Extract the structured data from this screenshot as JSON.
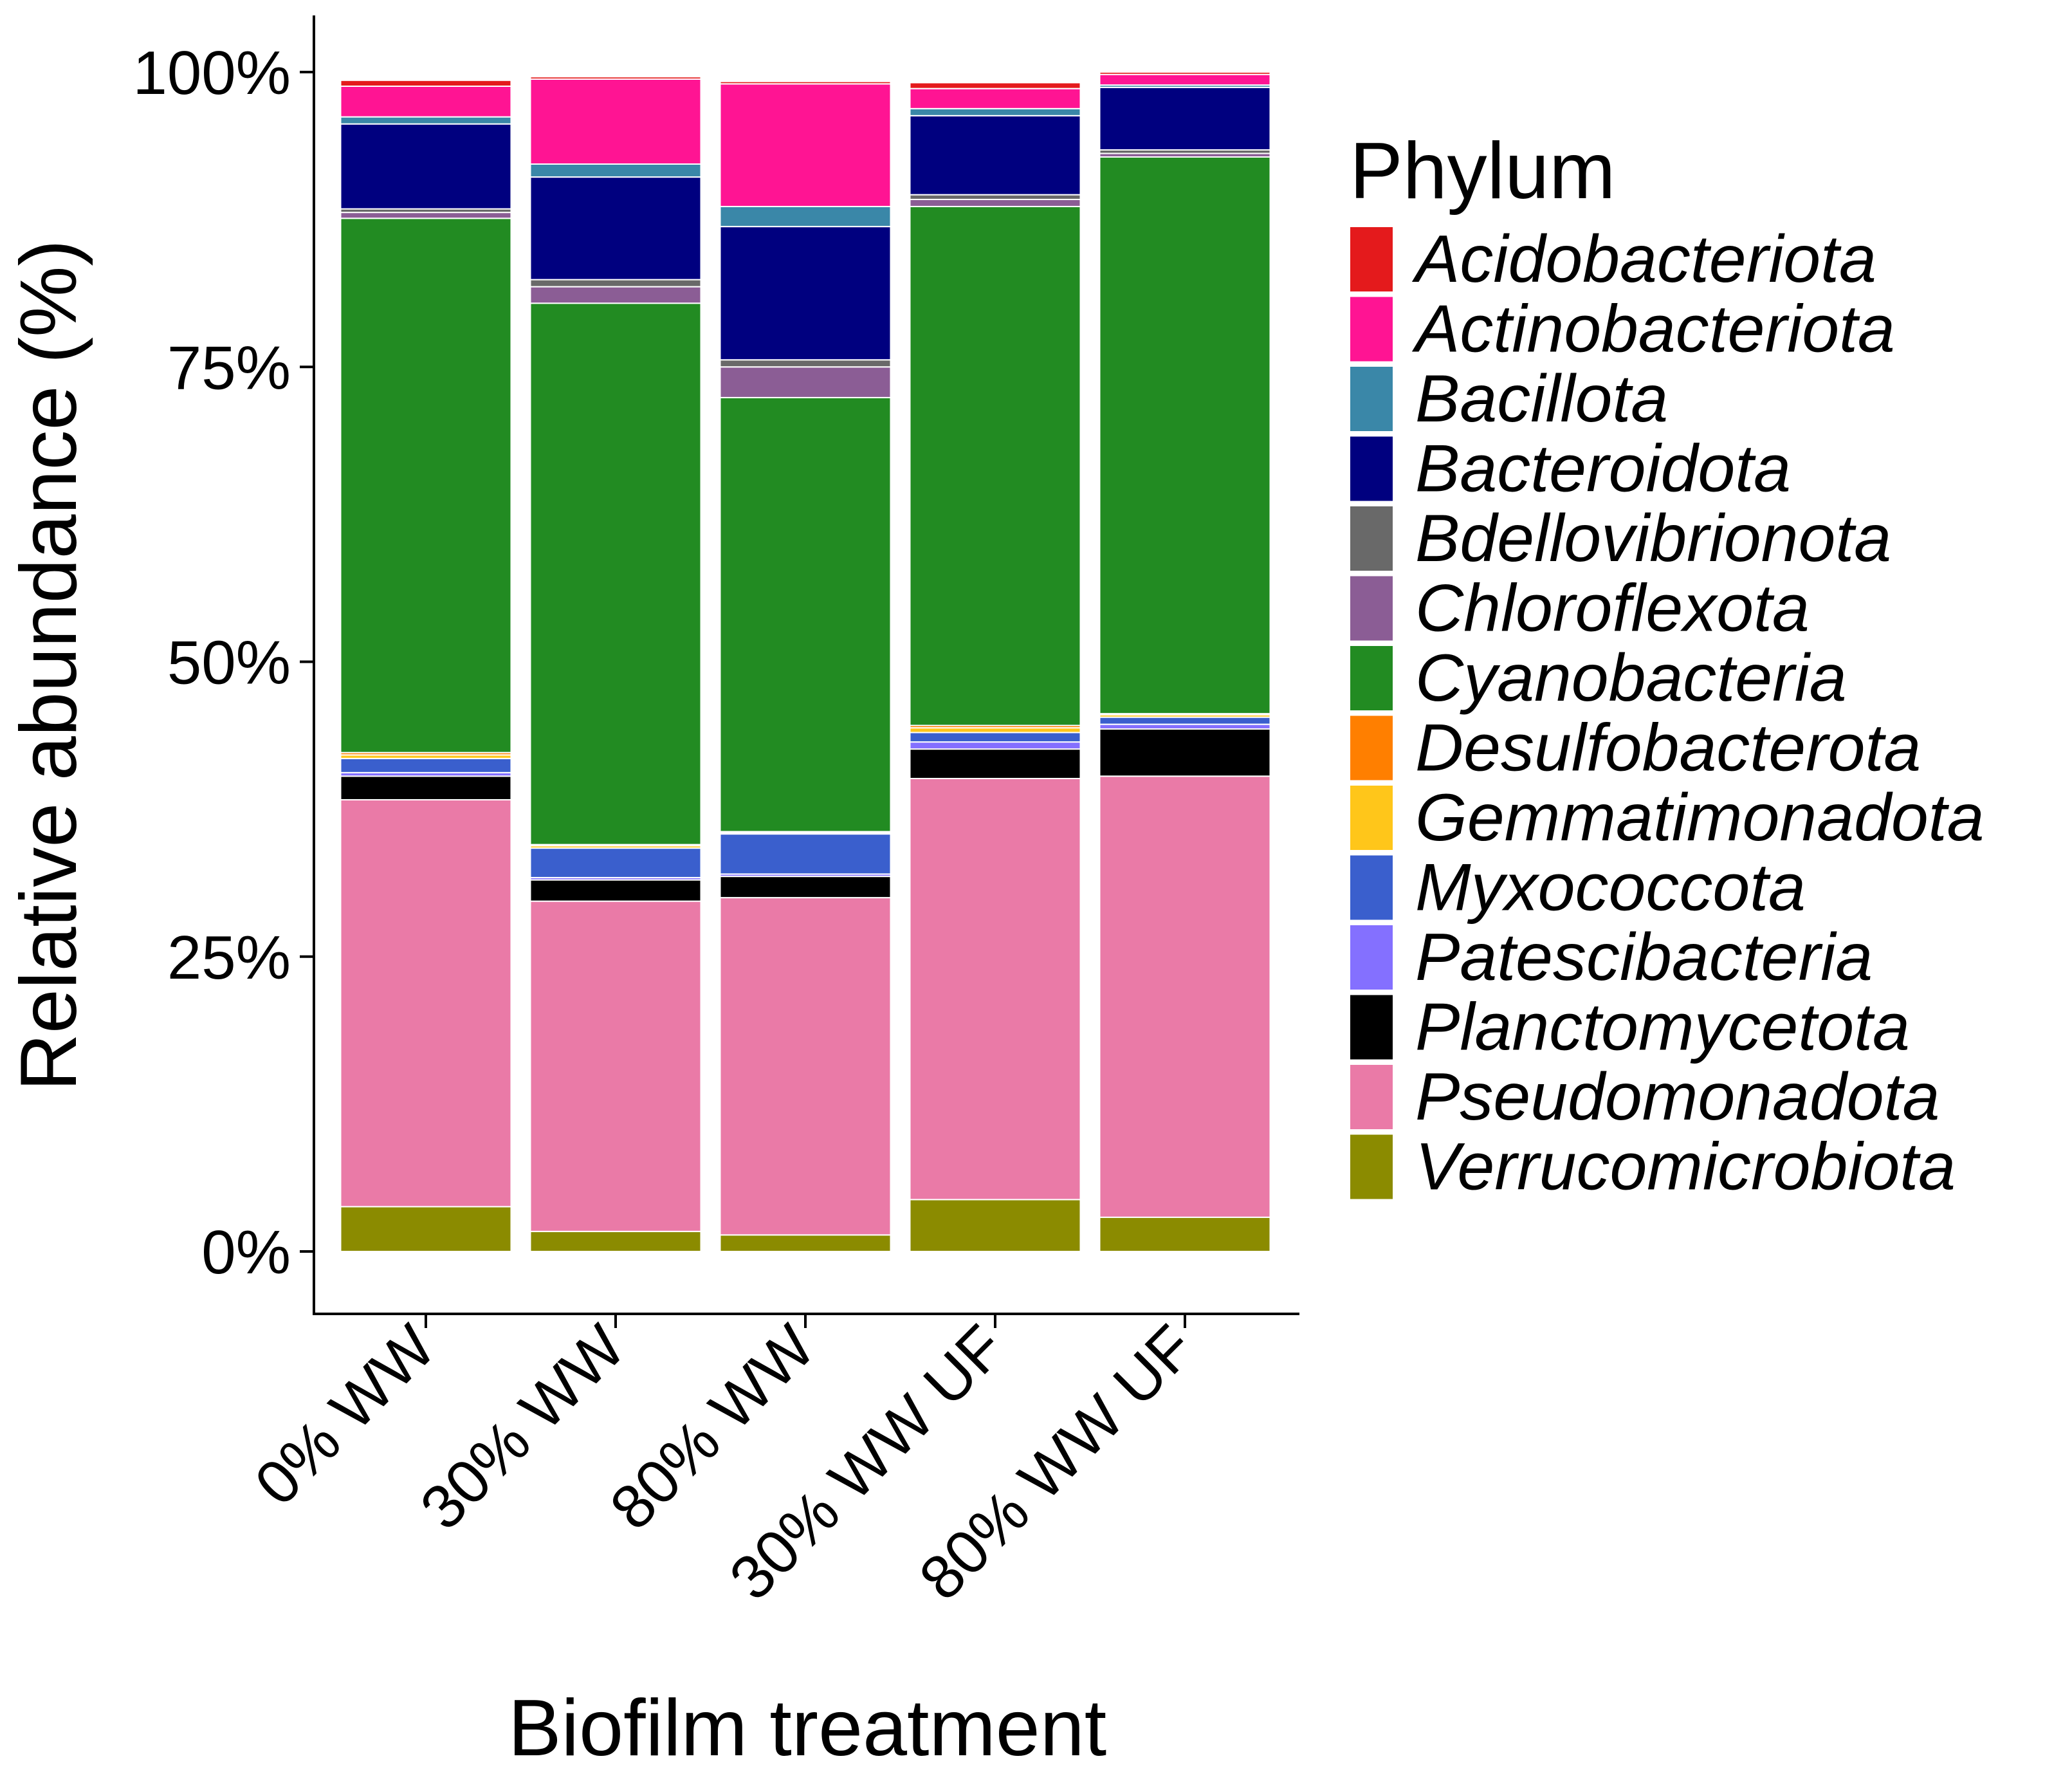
{
  "chart_data": {
    "type": "bar",
    "stacked": true,
    "xlabel": "Biofilm treatment",
    "ylabel": "Relative abundance (%)",
    "ylim": [
      0,
      100
    ],
    "yticks": [
      {
        "value": 0,
        "label": "0%"
      },
      {
        "value": 25,
        "label": "25%"
      },
      {
        "value": 50,
        "label": "50%"
      },
      {
        "value": 75,
        "label": "75%"
      },
      {
        "value": 100,
        "label": "100%"
      }
    ],
    "categories": [
      "0% WW",
      "30% WW",
      "80% WW",
      "30% WW UF",
      "80% WW UF"
    ],
    "legend": {
      "title": "Phylum",
      "position": "right"
    },
    "grid": false,
    "series": [
      {
        "name": "Verrucomicrobiota",
        "color": "#8B8B00",
        "values": [
          3.8,
          1.7,
          1.4,
          4.4,
          2.9
        ]
      },
      {
        "name": "Pseudomonadota",
        "color": "#EA7AA7",
        "values": [
          34.5,
          28.0,
          28.6,
          35.7,
          37.4
        ]
      },
      {
        "name": "Planctomycetota",
        "color": "#000000",
        "values": [
          2.0,
          1.8,
          1.8,
          2.5,
          4.0
        ]
      },
      {
        "name": "Patescibacteria",
        "color": "#8470FF",
        "values": [
          0.3,
          0.2,
          0.2,
          0.6,
          0.4
        ]
      },
      {
        "name": "Myxococcota",
        "color": "#3A5FCD",
        "values": [
          1.2,
          2.5,
          3.4,
          0.8,
          0.6
        ]
      },
      {
        "name": "Gemmatimonadota",
        "color": "#FFC61A",
        "values": [
          0.3,
          0.2,
          0.1,
          0.4,
          0.2
        ]
      },
      {
        "name": "Desulfobacterota",
        "color": "#FF7F00",
        "values": [
          0.2,
          0.1,
          0.1,
          0.2,
          0.1
        ]
      },
      {
        "name": "Cyanobacteria",
        "color": "#228B22",
        "values": [
          45.3,
          45.9,
          36.8,
          44.0,
          47.2
        ]
      },
      {
        "name": "Chloroflexota",
        "color": "#8B5D95",
        "values": [
          0.5,
          1.4,
          2.6,
          0.6,
          0.3
        ]
      },
      {
        "name": "Bdellovibrionota",
        "color": "#696969",
        "values": [
          0.3,
          0.6,
          0.6,
          0.4,
          0.3
        ]
      },
      {
        "name": "Bacteroidota",
        "color": "#00007F",
        "values": [
          7.2,
          8.7,
          11.3,
          6.7,
          5.3
        ]
      },
      {
        "name": "Bacillota",
        "color": "#3A87A8",
        "values": [
          0.6,
          1.1,
          1.7,
          0.6,
          0.2
        ]
      },
      {
        "name": "Actinobacteriota",
        "color": "#FF1493",
        "values": [
          2.6,
          7.2,
          10.4,
          1.7,
          0.9
        ]
      },
      {
        "name": "Acidobacteriota",
        "color": "#E41A1C",
        "values": [
          0.5,
          0.2,
          0.2,
          0.5,
          0.2
        ]
      }
    ],
    "legend_order": [
      "Acidobacteriota",
      "Actinobacteriota",
      "Bacillota",
      "Bacteroidota",
      "Bdellovibrionota",
      "Chloroflexota",
      "Cyanobacteria",
      "Desulfobacterota",
      "Gemmatimonadota",
      "Myxococcota",
      "Patescibacteria",
      "Planctomycetota",
      "Pseudomonadota",
      "Verrucomicrobiota"
    ]
  }
}
